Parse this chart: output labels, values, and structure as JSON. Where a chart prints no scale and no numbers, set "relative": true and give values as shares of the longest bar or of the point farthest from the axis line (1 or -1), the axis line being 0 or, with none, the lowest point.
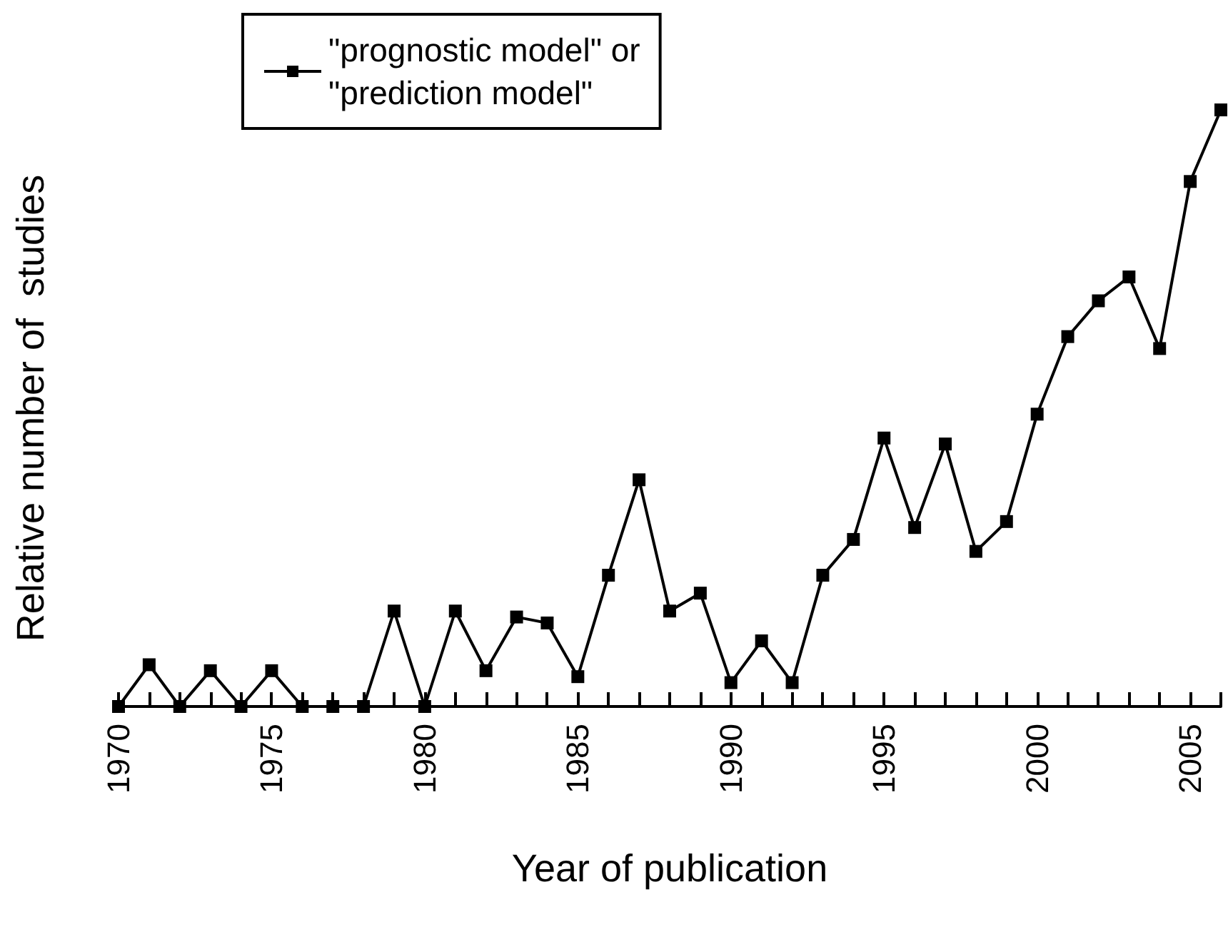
{
  "chart_data": {
    "type": "line",
    "relative": true,
    "xlabel": "Year of publication",
    "ylabel": "Relative number of  studies",
    "x": [
      1970,
      1971,
      1972,
      1973,
      1974,
      1975,
      1976,
      1977,
      1978,
      1979,
      1980,
      1981,
      1982,
      1983,
      1984,
      1985,
      1986,
      1987,
      1988,
      1989,
      1990,
      1991,
      1992,
      1993,
      1994,
      1995,
      1996,
      1997,
      1998,
      1999,
      2000,
      2001,
      2002,
      2003,
      2004,
      2005,
      2006
    ],
    "series": [
      {
        "name": "\"prognostic model\" or\n\"prediction model\"",
        "color": "#000000",
        "values": [
          0,
          0.07,
          0,
          0.06,
          0,
          0.06,
          0,
          0,
          0,
          0.16,
          0,
          0.16,
          0.06,
          0.15,
          0.14,
          0.05,
          0.22,
          0.38,
          0.16,
          0.19,
          0.04,
          0.11,
          0.04,
          0.22,
          0.28,
          0.45,
          0.3,
          0.44,
          0.26,
          0.31,
          0.49,
          0.62,
          0.68,
          0.72,
          0.6,
          0.88,
          1
        ]
      }
    ],
    "xlim": [
      1970,
      2006
    ],
    "xticks": [
      1970,
      {
        "value": 1971,
        "label": null
      },
      {
        "value": 1972,
        "label": null
      },
      {
        "value": 1973,
        "label": null
      },
      {
        "value": 1974,
        "label": null
      },
      1975,
      {
        "value": 1976,
        "label": null
      },
      {
        "value": 1977,
        "label": null
      },
      {
        "value": 1978,
        "label": null
      },
      {
        "value": 1979,
        "label": null
      },
      1980,
      {
        "value": 1981,
        "label": null
      },
      {
        "value": 1982,
        "label": null
      },
      {
        "value": 1983,
        "label": null
      },
      {
        "value": 1984,
        "label": null
      },
      1985,
      {
        "value": 1986,
        "label": null
      },
      {
        "value": 1987,
        "label": null
      },
      {
        "value": 1988,
        "label": null
      },
      {
        "value": 1989,
        "label": null
      },
      1990,
      {
        "value": 1991,
        "label": null
      },
      {
        "value": 1992,
        "label": null
      },
      {
        "value": 1993,
        "label": null
      },
      {
        "value": 1994,
        "label": null
      },
      1995,
      {
        "value": 1996,
        "label": null
      },
      {
        "value": 1997,
        "label": null
      },
      {
        "value": 1998,
        "label": null
      },
      {
        "value": 1999,
        "label": null
      },
      2000,
      {
        "value": 2001,
        "label": null
      },
      {
        "value": 2002,
        "label": null
      },
      {
        "value": 2003,
        "label": null
      },
      {
        "value": 2004,
        "label": null
      },
      2005,
      {
        "value": 2006,
        "label": null
      }
    ],
    "legend": "top left",
    "grid": false,
    "marker": "square",
    "line_style": "solid"
  }
}
